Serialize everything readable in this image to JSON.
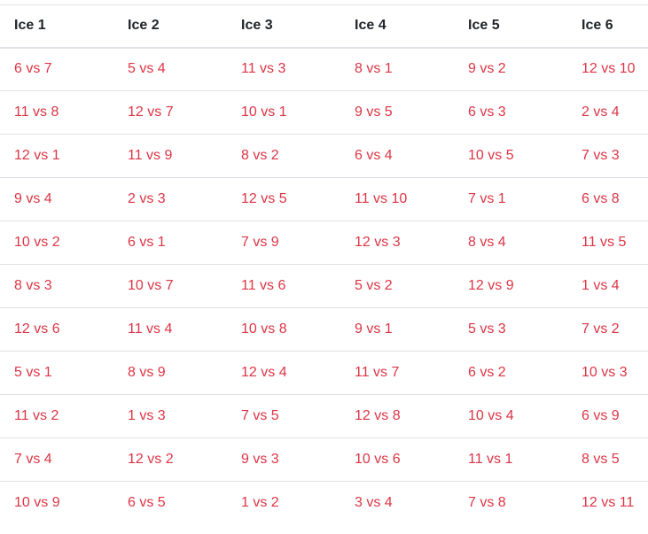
{
  "table": {
    "headers": [
      "Ice 1",
      "Ice 2",
      "Ice 3",
      "Ice 4",
      "Ice 5",
      "Ice 6"
    ],
    "rows": [
      [
        "6 vs 7",
        "5 vs 4",
        "11 vs 3",
        "8 vs 1",
        "9 vs 2",
        "12 vs 10"
      ],
      [
        "11 vs 8",
        "12 vs 7",
        "10 vs 1",
        "9 vs 5",
        "6 vs 3",
        "2 vs 4"
      ],
      [
        "12 vs 1",
        "11 vs 9",
        "8 vs 2",
        "6 vs 4",
        "10 vs 5",
        "7 vs 3"
      ],
      [
        "9 vs 4",
        "2 vs 3",
        "12 vs 5",
        "11 vs 10",
        "7 vs 1",
        "6 vs 8"
      ],
      [
        "10 vs 2",
        "6 vs 1",
        "7 vs 9",
        "12 vs 3",
        "8 vs 4",
        "11 vs 5"
      ],
      [
        "8 vs 3",
        "10 vs 7",
        "11 vs 6",
        "5 vs 2",
        "12 vs 9",
        "1 vs 4"
      ],
      [
        "12 vs 6",
        "11 vs 4",
        "10 vs 8",
        "9 vs 1",
        "5 vs 3",
        "7 vs 2"
      ],
      [
        "5 vs 1",
        "8 vs 9",
        "12 vs 4",
        "11 vs 7",
        "6 vs 2",
        "10 vs 3"
      ],
      [
        "11 vs 2",
        "1 vs 3",
        "7 vs 5",
        "12 vs 8",
        "10 vs 4",
        "6 vs 9"
      ],
      [
        "7 vs 4",
        "12 vs 2",
        "9 vs 3",
        "10 vs 6",
        "11 vs 1",
        "8 vs 5"
      ],
      [
        "10 vs 9",
        "6 vs 5",
        "1 vs 2",
        "3 vs 4",
        "7 vs 8",
        "12 vs 11"
      ]
    ]
  },
  "colors": {
    "header_text": "#212529",
    "matchup_link": "#dc3545",
    "row_divider": "#dee2e6"
  }
}
